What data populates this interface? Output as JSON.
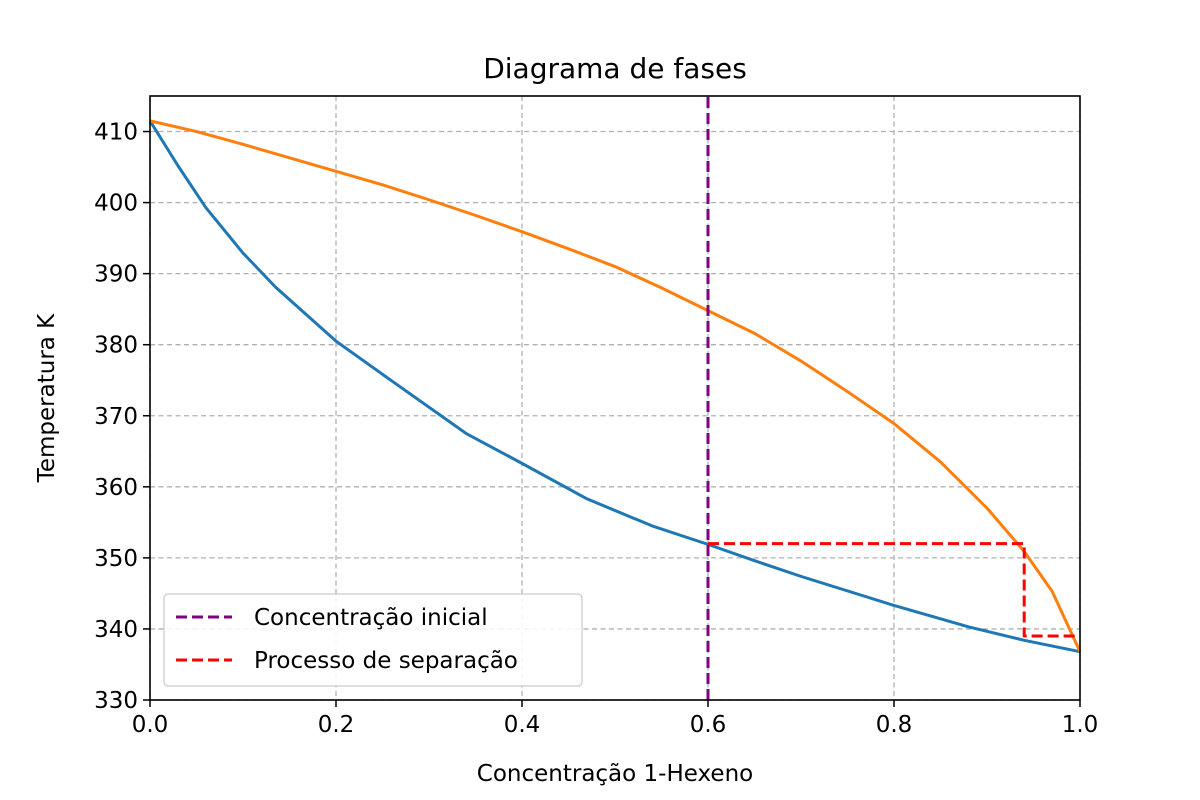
{
  "chart_data": {
    "type": "line",
    "title": "Diagrama de fases",
    "xlabel": "Concentração 1-Hexeno",
    "ylabel": "Temperatura K",
    "xlim": [
      0.0,
      1.0
    ],
    "ylim": [
      330,
      415
    ],
    "xticks": [
      0.0,
      0.2,
      0.4,
      0.6,
      0.8,
      1.0
    ],
    "xtick_labels": [
      "0.0",
      "0.2",
      "0.4",
      "0.6",
      "0.8",
      "1.0"
    ],
    "yticks": [
      330,
      340,
      350,
      360,
      370,
      380,
      390,
      400,
      410
    ],
    "ytick_labels": [
      "330",
      "340",
      "350",
      "360",
      "370",
      "380",
      "390",
      "400",
      "410"
    ],
    "grid": true,
    "legend_position": "lower-left",
    "series": [
      {
        "color": "#1f77b4",
        "style": "solid",
        "x": [
          0.0,
          0.03,
          0.06,
          0.1,
          0.135,
          0.2,
          0.26,
          0.34,
          0.4,
          0.47,
          0.54,
          0.6,
          0.65,
          0.7,
          0.8,
          0.88,
          0.94,
          1.0
        ],
        "y": [
          411.5,
          405.2,
          399.3,
          392.9,
          388.1,
          380.5,
          374.9,
          367.5,
          363.3,
          358.3,
          354.5,
          351.9,
          349.6,
          347.4,
          343.3,
          340.3,
          338.4,
          336.8
        ]
      },
      {
        "color": "#ff7f0e",
        "style": "solid",
        "x": [
          0.0,
          0.05,
          0.1,
          0.15,
          0.2,
          0.25,
          0.3,
          0.35,
          0.4,
          0.45,
          0.5,
          0.55,
          0.6,
          0.65,
          0.7,
          0.75,
          0.8,
          0.85,
          0.9,
          0.94,
          0.97,
          1.0
        ],
        "y": [
          411.5,
          410.0,
          408.2,
          406.3,
          404.4,
          402.5,
          400.4,
          398.2,
          395.9,
          393.5,
          391.0,
          388.0,
          384.8,
          381.6,
          377.7,
          373.4,
          368.9,
          363.5,
          357.0,
          350.9,
          345.3,
          336.8
        ]
      },
      {
        "name": "Concentração inicial",
        "color": "#800080",
        "style": "dashed",
        "x": [
          0.6,
          0.6
        ],
        "y": [
          330,
          415
        ]
      },
      {
        "name": "Processo de separação",
        "color": "#ff0000",
        "style": "dashed",
        "x": [
          0.6,
          0.94,
          0.94,
          1.0
        ],
        "y": [
          352.0,
          352.0,
          339.0,
          339.0
        ]
      }
    ]
  }
}
